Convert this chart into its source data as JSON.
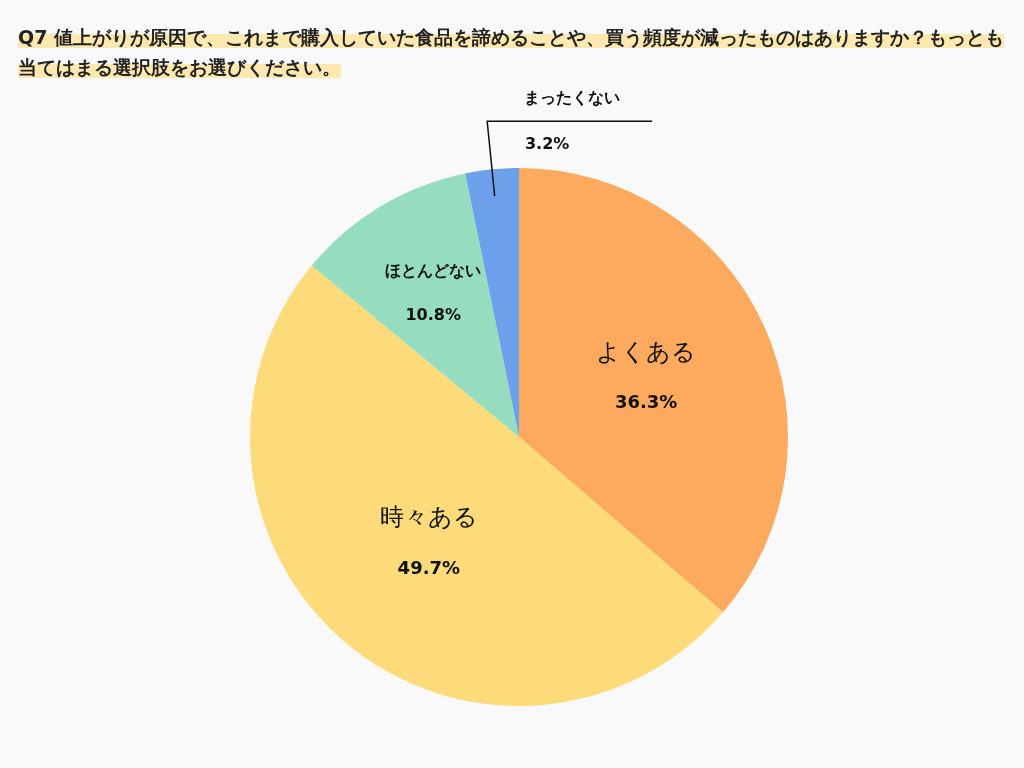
{
  "chart_data": {
    "type": "pie",
    "title": "Q7 値上がりが原因で、これまで購入していた食品を諦めることや、買う頻度が減ったものはありますか？もっとも当てはまる選択肢をお選びください。",
    "categories": [
      "よくある",
      "時々ある",
      "ほとんどない",
      "まったくない"
    ],
    "values": [
      36.3,
      49.7,
      10.8,
      3.2
    ],
    "value_labels": [
      "36.3%",
      "49.7%",
      "10.8%",
      "3.2%"
    ],
    "colors": [
      "#fdaa5e",
      "#fddb7a",
      "#96dcbe",
      "#6ca0ea"
    ]
  }
}
